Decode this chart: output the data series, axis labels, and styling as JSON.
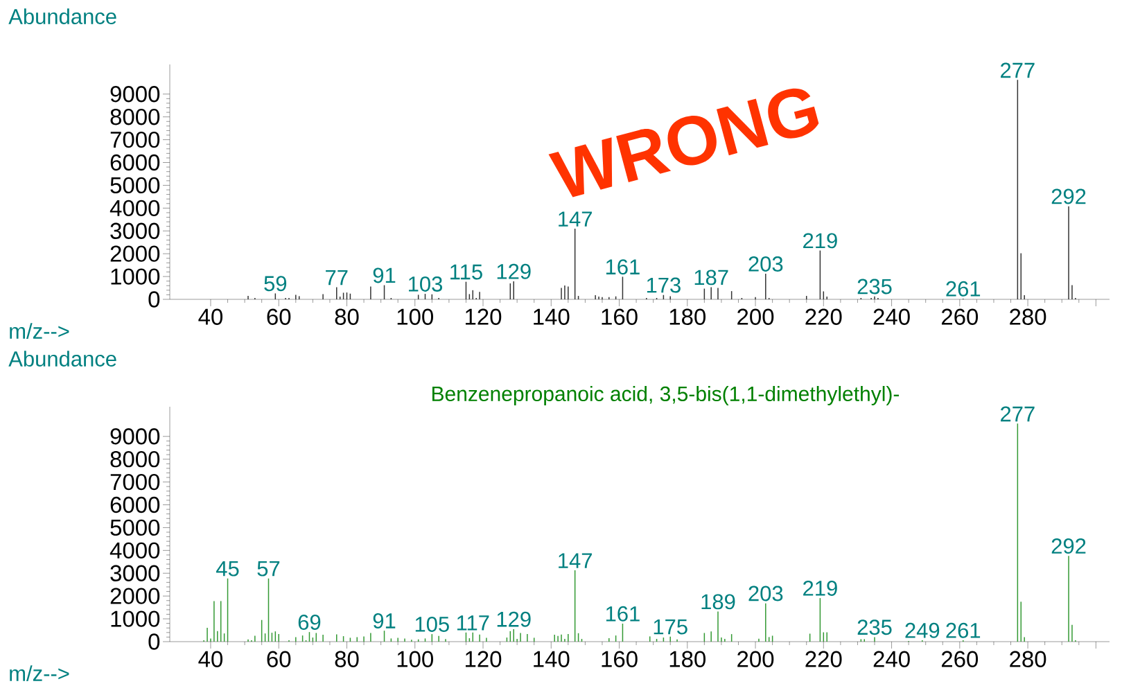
{
  "chart_data": [
    {
      "type": "bar",
      "xlabel": "m/z-->",
      "ylabel": "Abundance",
      "color": "#333333",
      "xlim": [
        28,
        304
      ],
      "ylim": [
        0,
        10300
      ],
      "xticks": [
        40,
        60,
        80,
        100,
        120,
        140,
        160,
        180,
        200,
        220,
        240,
        260,
        280,
        {
          "value": 300,
          "label": null
        }
      ],
      "yticks": [
        0,
        1000,
        2000,
        3000,
        4000,
        5000,
        6000,
        7000,
        8000,
        9000
      ],
      "annotations": [
        "WRONG",
        {
          "text": "59",
          "x": 59,
          "y": 260
        },
        {
          "text": "77",
          "x": 77,
          "y": 530
        },
        {
          "text": "91",
          "x": 91,
          "y": 620
        },
        {
          "text": "103",
          "x": 103,
          "y": 240
        },
        {
          "text": "115",
          "x": 115,
          "y": 770
        },
        {
          "text": "129",
          "x": 129,
          "y": 790
        },
        {
          "text": "147",
          "x": 147,
          "y": 3100
        },
        {
          "text": "161",
          "x": 161,
          "y": 990
        },
        {
          "text": "173",
          "x": 173,
          "y": 190
        },
        {
          "text": "187",
          "x": 187,
          "y": 530
        },
        {
          "text": "203",
          "x": 203,
          "y": 1120
        },
        {
          "text": "219",
          "x": 219,
          "y": 2140
        },
        {
          "text": "235",
          "x": 235,
          "y": 130
        },
        {
          "text": "261",
          "x": 261,
          "y": 30
        },
        {
          "text": "277",
          "x": 277,
          "y": 9620
        },
        {
          "text": "292",
          "x": 292,
          "y": 4080
        }
      ],
      "x": [
        51,
        53,
        59,
        62,
        63,
        65,
        66,
        73,
        77,
        78,
        79,
        80,
        81,
        87,
        91,
        93,
        101,
        103,
        105,
        107,
        115,
        116,
        117,
        118,
        119,
        128,
        129,
        143,
        144,
        145,
        147,
        148,
        153,
        154,
        155,
        157,
        159,
        161,
        168,
        171,
        173,
        175,
        185,
        187,
        189,
        193,
        196,
        200,
        203,
        204,
        215,
        219,
        220,
        221,
        231,
        234,
        235,
        236,
        261,
        277,
        278,
        279,
        292,
        293,
        294
      ],
      "values": [
        150,
        60,
        260,
        60,
        60,
        200,
        140,
        230,
        530,
        120,
        290,
        300,
        250,
        560,
        620,
        60,
        200,
        240,
        220,
        60,
        770,
        230,
        400,
        60,
        330,
        700,
        790,
        500,
        610,
        560,
        3100,
        150,
        180,
        120,
        100,
        100,
        130,
        990,
        60,
        60,
        190,
        140,
        470,
        530,
        500,
        360,
        60,
        100,
        1120,
        60,
        150,
        2140,
        350,
        120,
        60,
        60,
        130,
        60,
        30,
        9620,
        2020,
        180,
        4080,
        620,
        60
      ]
    },
    {
      "type": "bar",
      "xlabel": "m/z-->",
      "ylabel": "Abundance",
      "subtitle": "Benzenepropanoic acid, 3,5-bis(1,1-dimethylethyl)-",
      "color": "#339933",
      "xlim": [
        28,
        304
      ],
      "ylim": [
        0,
        10300
      ],
      "xticks": [
        40,
        60,
        80,
        100,
        120,
        140,
        160,
        180,
        200,
        220,
        240,
        260,
        280,
        {
          "value": 300,
          "label": null
        }
      ],
      "yticks": [
        0,
        1000,
        2000,
        3000,
        4000,
        5000,
        6000,
        7000,
        8000,
        9000
      ],
      "annotations": [
        {
          "text": "45",
          "x": 45,
          "y": 2770
        },
        {
          "text": "57",
          "x": 57,
          "y": 2770
        },
        {
          "text": "69",
          "x": 69,
          "y": 420
        },
        {
          "text": "91",
          "x": 91,
          "y": 480
        },
        {
          "text": "105",
          "x": 105,
          "y": 330
        },
        {
          "text": "117",
          "x": 117,
          "y": 400
        },
        {
          "text": "129",
          "x": 129,
          "y": 550
        },
        {
          "text": "147",
          "x": 147,
          "y": 3130
        },
        {
          "text": "161",
          "x": 161,
          "y": 790
        },
        {
          "text": "175",
          "x": 175,
          "y": 220
        },
        {
          "text": "189",
          "x": 189,
          "y": 1320
        },
        {
          "text": "203",
          "x": 203,
          "y": 1680
        },
        {
          "text": "219",
          "x": 219,
          "y": 1910
        },
        {
          "text": "235",
          "x": 235,
          "y": 200
        },
        {
          "text": "249",
          "x": 249,
          "y": 60
        },
        {
          "text": "261",
          "x": 261,
          "y": 60
        },
        {
          "text": "277",
          "x": 277,
          "y": 9560
        },
        {
          "text": "292",
          "x": 292,
          "y": 3760
        }
      ],
      "x": [
        38,
        39,
        40,
        41,
        42,
        43,
        44,
        45,
        51,
        52,
        53,
        55,
        56,
        57,
        58,
        59,
        60,
        63,
        65,
        67,
        68,
        69,
        70,
        71,
        73,
        77,
        79,
        81,
        83,
        85,
        87,
        91,
        93,
        95,
        97,
        99,
        101,
        103,
        105,
        107,
        109,
        115,
        116,
        117,
        119,
        121,
        127,
        128,
        129,
        130,
        131,
        133,
        135,
        141,
        142,
        143,
        144,
        145,
        147,
        148,
        149,
        157,
        159,
        161,
        169,
        171,
        173,
        175,
        177,
        185,
        187,
        189,
        190,
        191,
        193,
        201,
        203,
        204,
        205,
        216,
        219,
        220,
        221,
        231,
        232,
        235,
        245,
        249,
        261,
        277,
        278,
        279,
        292,
        293,
        294
      ],
      "values": [
        60,
        610,
        140,
        1780,
        460,
        1780,
        360,
        2770,
        100,
        60,
        260,
        950,
        360,
        2770,
        390,
        450,
        330,
        60,
        200,
        270,
        60,
        420,
        180,
        380,
        300,
        320,
        240,
        170,
        200,
        230,
        380,
        480,
        140,
        170,
        140,
        80,
        100,
        140,
        330,
        250,
        110,
        400,
        150,
        400,
        310,
        170,
        180,
        460,
        550,
        120,
        380,
        330,
        170,
        300,
        250,
        310,
        120,
        330,
        3130,
        370,
        120,
        150,
        270,
        790,
        230,
        120,
        180,
        220,
        100,
        380,
        450,
        1320,
        180,
        120,
        330,
        130,
        1680,
        200,
        260,
        350,
        1910,
        410,
        410,
        110,
        110,
        200,
        30,
        60,
        60,
        9560,
        1750,
        200,
        3760,
        740,
        60
      ]
    }
  ]
}
